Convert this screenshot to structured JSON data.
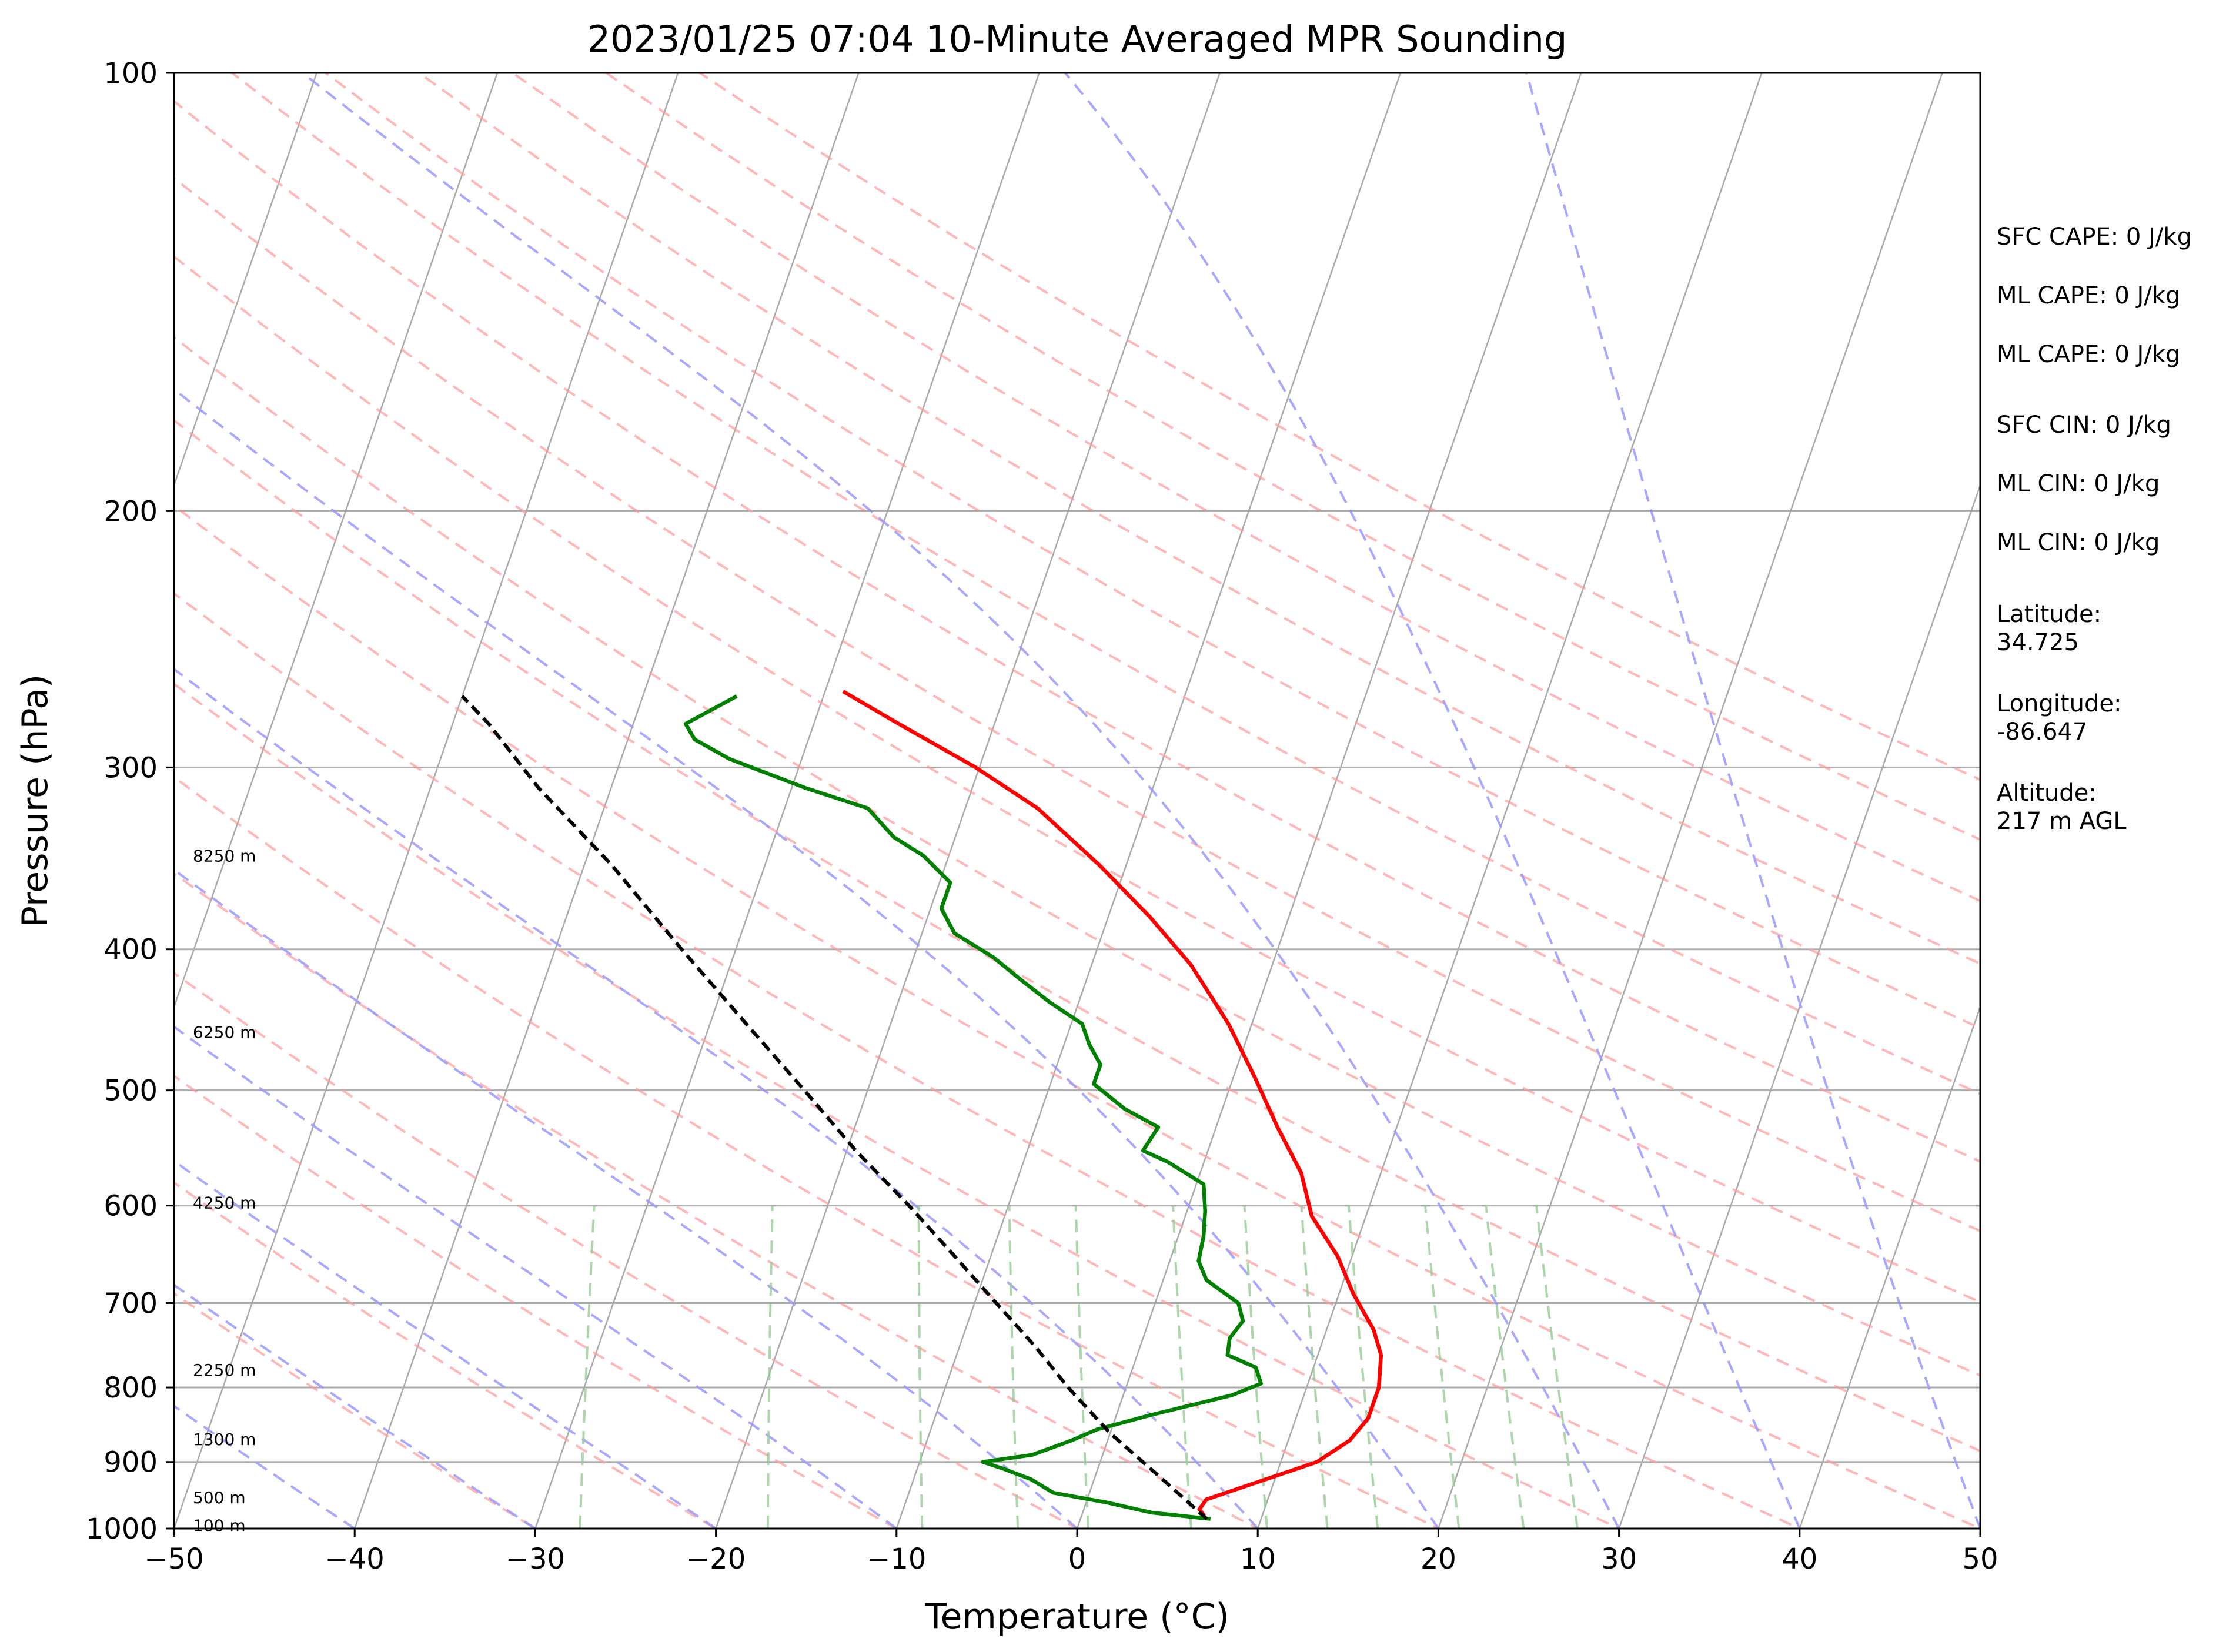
{
  "chart_data": {
    "type": "line",
    "subtype": "skew-t log-p sounding",
    "title": "2023/01/25 07:04 10-Minute Averaged MPR Sounding",
    "xlabel": "Temperature (°C)",
    "ylabel": "Pressure (hPa)",
    "xlim": [
      -50,
      50
    ],
    "ylim": [
      1000,
      100
    ],
    "y_scale": "log",
    "x_ticks": [
      -50,
      -40,
      -30,
      -20,
      -10,
      0,
      10,
      20,
      30,
      40,
      50
    ],
    "x_tick_labels": [
      "−50",
      "−40",
      "−30",
      "−20",
      "−10",
      "0",
      "10",
      "20",
      "30",
      "40",
      "50"
    ],
    "y_ticks": [
      1000,
      900,
      800,
      700,
      600,
      500,
      400,
      300,
      200,
      100
    ],
    "y_tick_labels": [
      "1000",
      "900",
      "800",
      "700",
      "600",
      "500",
      "400",
      "300",
      "200",
      "100"
    ],
    "height_labels": [
      {
        "text": "8250 m",
        "pressure": 345
      },
      {
        "text": "6250 m",
        "pressure": 456
      },
      {
        "text": "4250 m",
        "pressure": 597
      },
      {
        "text": "2250 m",
        "pressure": 778
      },
      {
        "text": "1300 m",
        "pressure": 868
      },
      {
        "text": "500 m",
        "pressure": 952
      },
      {
        "text": "100 m",
        "pressure": 995
      }
    ],
    "info_lines": [
      "SFC CAPE: 0 J/kg",
      "ML CAPE: 0 J/kg",
      "ML CAPE: 0 J/kg",
      "SFC CIN: 0 J/kg",
      "ML CIN: 0 J/kg",
      "ML CIN: 0 J/kg",
      "Latitude:",
      "34.725",
      "Longitude:",
      "-86.647",
      "Altitude:",
      "217 m AGL"
    ],
    "series": [
      {
        "name": "temperature",
        "color": "#ff0000",
        "points": [
          [
            6.8,
            980
          ],
          [
            6.4,
            970
          ],
          [
            6.6,
            955
          ],
          [
            9.5,
            925
          ],
          [
            12,
            900
          ],
          [
            13.4,
            870
          ],
          [
            14,
            840
          ],
          [
            14,
            800
          ],
          [
            13.5,
            760
          ],
          [
            12.6,
            730
          ],
          [
            10.8,
            690
          ],
          [
            9.2,
            650
          ],
          [
            7,
            610
          ],
          [
            5.6,
            570
          ],
          [
            3.4,
            530
          ],
          [
            1.2,
            490
          ],
          [
            -1.3,
            450
          ],
          [
            -4.5,
            410
          ],
          [
            -7.7,
            380
          ],
          [
            -11.5,
            350
          ],
          [
            -16,
            320
          ],
          [
            -20.2,
            300
          ],
          [
            -25.3,
            280
          ],
          [
            -29,
            266
          ]
        ]
      },
      {
        "name": "dewpoint",
        "color": "#008000",
        "points": [
          [
            7.2,
            985
          ],
          [
            3.8,
            975
          ],
          [
            1.2,
            960
          ],
          [
            -2,
            945
          ],
          [
            -3.5,
            925
          ],
          [
            -5.2,
            910
          ],
          [
            -6.5,
            900
          ],
          [
            -3.9,
            890
          ],
          [
            -2,
            870
          ],
          [
            -0.8,
            855
          ],
          [
            2,
            835
          ],
          [
            6,
            810
          ],
          [
            7.4,
            795
          ],
          [
            6.8,
            775
          ],
          [
            5,
            760
          ],
          [
            4.8,
            740
          ],
          [
            5.2,
            720
          ],
          [
            4.6,
            700
          ],
          [
            2.4,
            675
          ],
          [
            1.6,
            655
          ],
          [
            1.4,
            630
          ],
          [
            1,
            605
          ],
          [
            0.4,
            580
          ],
          [
            -2,
            560
          ],
          [
            -3.6,
            550
          ],
          [
            -3.2,
            530
          ],
          [
            -5.4,
            515
          ],
          [
            -7.6,
            495
          ],
          [
            -7.6,
            480
          ],
          [
            -8.6,
            465
          ],
          [
            -9.4,
            450
          ],
          [
            -11.6,
            435
          ],
          [
            -13.6,
            420
          ],
          [
            -15.6,
            405
          ],
          [
            -18.2,
            390
          ],
          [
            -19.4,
            375
          ],
          [
            -19.4,
            360
          ],
          [
            -21.4,
            345
          ],
          [
            -23.4,
            335
          ],
          [
            -25.4,
            320
          ],
          [
            -29.2,
            310
          ],
          [
            -34,
            296
          ],
          [
            -36.3,
            287
          ],
          [
            -37.1,
            280
          ],
          [
            -34.8,
            268
          ]
        ]
      },
      {
        "name": "parcel",
        "color": "#000000",
        "dashed": true,
        "points": [
          [
            7,
            985
          ],
          [
            3.5,
            920
          ],
          [
            0,
            860
          ],
          [
            -3.2,
            800
          ],
          [
            -5.8,
            750
          ],
          [
            -8.8,
            700
          ],
          [
            -12,
            650
          ],
          [
            -15.5,
            600
          ],
          [
            -19.5,
            550
          ],
          [
            -23.5,
            500
          ],
          [
            -28,
            450
          ],
          [
            -33,
            400
          ],
          [
            -38.5,
            350
          ],
          [
            -44,
            310
          ],
          [
            -48,
            280
          ],
          [
            -50,
            268
          ]
        ]
      }
    ],
    "background_lines": {
      "isotherm_step": 10,
      "dry_adiabat_thetas_c": [
        -30,
        -20,
        -10,
        0,
        10,
        20,
        30,
        40,
        50,
        60,
        70,
        80,
        90,
        100,
        110,
        120,
        130,
        140,
        150,
        160
      ],
      "moist_adiabat_starts_c": [
        -40,
        -30,
        -20,
        -10,
        0,
        10,
        20,
        30,
        40,
        50
      ],
      "mixing_ratios_gkg": [
        0.4,
        1,
        2,
        3,
        4,
        6,
        8,
        10,
        12,
        16,
        20,
        24
      ],
      "colors": {
        "isotherm": "#aaaaaa",
        "isobar": "#aaaaaa",
        "dry_adiabat": "#ff9999",
        "moist_adiabat": "#9999ff",
        "mixing_ratio": "#99cc99"
      }
    }
  }
}
